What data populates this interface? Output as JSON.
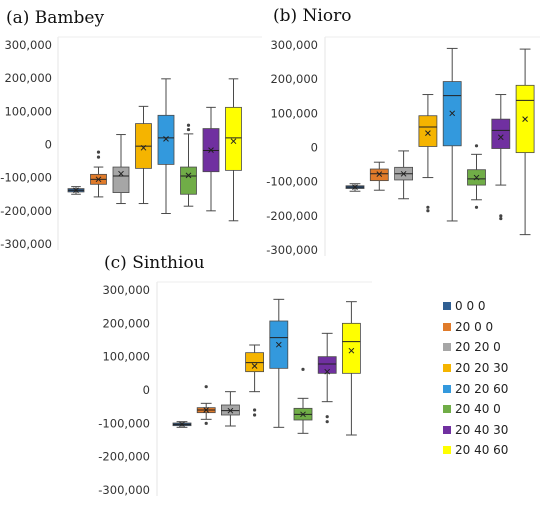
{
  "chart_data": [
    {
      "panel": "a",
      "title": "(a) Bambey",
      "type": "boxplot",
      "yticks": [
        "300,000",
        "200,000",
        "100,000",
        "0",
        "-100,000",
        "-200,000",
        "-300,000"
      ],
      "ylim": [
        -300000,
        300000
      ],
      "series": [
        {
          "name": "0 0 0",
          "min": -150000,
          "q1": -143000,
          "median": -138000,
          "q3": -133000,
          "max": -127000,
          "mean": -138000,
          "outliers": []
        },
        {
          "name": "20 0 0",
          "min": -158000,
          "q1": -120000,
          "median": -105000,
          "q3": -90000,
          "max": -68000,
          "mean": -105000,
          "outliers": [
            -38000,
            -23000
          ]
        },
        {
          "name": "20 20 0",
          "min": -178000,
          "q1": -145000,
          "median": -95000,
          "q3": -68000,
          "max": 30000,
          "mean": -88000,
          "outliers": []
        },
        {
          "name": "20 20 30",
          "min": -178000,
          "q1": -72000,
          "median": -5000,
          "q3": 63000,
          "max": 115000,
          "mean": -10000,
          "outliers": []
        },
        {
          "name": "20 20 60",
          "min": -208000,
          "q1": -60000,
          "median": 20000,
          "q3": 88000,
          "max": 198000,
          "mean": 17000,
          "outliers": []
        },
        {
          "name": "20 40 0",
          "min": -186000,
          "q1": -150000,
          "median": -95000,
          "q3": -68000,
          "max": 32000,
          "mean": -93000,
          "outliers": [
            58000,
            45000
          ]
        },
        {
          "name": "20 40 30",
          "min": -200000,
          "q1": -82000,
          "median": -18000,
          "q3": 48000,
          "max": 112000,
          "mean": -17000,
          "outliers": []
        },
        {
          "name": "20 40 60",
          "min": -230000,
          "q1": -78000,
          "median": 20000,
          "q3": 112000,
          "max": 198000,
          "mean": 10000,
          "outliers": []
        }
      ]
    },
    {
      "panel": "b",
      "title": "(b) Nioro",
      "type": "boxplot",
      "yticks": [
        "300,000",
        "200,000",
        "100,000",
        "0",
        "-100,000",
        "-200,000",
        "-300,000"
      ],
      "ylim": [
        -300000,
        300000
      ],
      "series": [
        {
          "name": "0 0 0",
          "min": -128000,
          "q1": -120000,
          "median": -116000,
          "q3": -112000,
          "max": -106000,
          "mean": -116000,
          "outliers": []
        },
        {
          "name": "20 0 0",
          "min": -125000,
          "q1": -97000,
          "median": -77000,
          "q3": -63000,
          "max": -43000,
          "mean": -78000,
          "outliers": []
        },
        {
          "name": "20 20 0",
          "min": -150000,
          "q1": -95000,
          "median": -77000,
          "q3": -58000,
          "max": -10000,
          "mean": -77000,
          "outliers": []
        },
        {
          "name": "20 20 30",
          "min": -88000,
          "q1": 3000,
          "median": 60000,
          "q3": 93000,
          "max": 155000,
          "mean": 42000,
          "outliers": [
            -175000,
            -185000
          ]
        },
        {
          "name": "20 20 60",
          "min": -215000,
          "q1": 5000,
          "median": 152000,
          "q3": 193000,
          "max": 290000,
          "mean": 100000,
          "outliers": []
        },
        {
          "name": "20 40 0",
          "min": -153000,
          "q1": -110000,
          "median": -92000,
          "q3": -65000,
          "max": -20000,
          "mean": -88000,
          "outliers": [
            -175000,
            5000
          ]
        },
        {
          "name": "20 40 30",
          "min": -110000,
          "q1": -3000,
          "median": 50000,
          "q3": 83000,
          "max": 155000,
          "mean": 30000,
          "outliers": [
            -200000,
            -208000
          ]
        },
        {
          "name": "20 40 60",
          "min": -255000,
          "q1": -15000,
          "median": 138000,
          "q3": 182000,
          "max": 288000,
          "mean": 83000,
          "outliers": []
        }
      ]
    },
    {
      "panel": "c",
      "title": "(c) Sinthiou",
      "type": "boxplot",
      "yticks": [
        "300,000",
        "200,000",
        "100,000",
        "0",
        "-100,000",
        "-200,000",
        "-300,000"
      ],
      "ylim": [
        -300000,
        300000
      ],
      "series": [
        {
          "name": "0 0 0",
          "min": -112000,
          "q1": -107000,
          "median": -103000,
          "q3": -99000,
          "max": -95000,
          "mean": -103000,
          "outliers": []
        },
        {
          "name": "20 0 0",
          "min": -88000,
          "q1": -68000,
          "median": -60000,
          "q3": -53000,
          "max": -40000,
          "mean": -60000,
          "outliers": [
            -100000,
            10000
          ]
        },
        {
          "name": "20 20 0",
          "min": -108000,
          "q1": -75000,
          "median": -62000,
          "q3": -45000,
          "max": -5000,
          "mean": -62000,
          "outliers": []
        },
        {
          "name": "20 20 30",
          "min": -5000,
          "q1": 55000,
          "median": 82000,
          "q3": 112000,
          "max": 135000,
          "mean": 72000,
          "outliers": [
            -60000,
            -75000
          ]
        },
        {
          "name": "20 20 60",
          "min": -112000,
          "q1": 65000,
          "median": 157000,
          "q3": 207000,
          "max": 272000,
          "mean": 136000,
          "outliers": []
        },
        {
          "name": "20 40 0",
          "min": -130000,
          "q1": -90000,
          "median": -73000,
          "q3": -55000,
          "max": -25000,
          "mean": -73000,
          "outliers": [
            62000
          ]
        },
        {
          "name": "20 40 30",
          "min": -35000,
          "q1": 50000,
          "median": 78000,
          "q3": 100000,
          "max": 170000,
          "mean": 55000,
          "outliers": [
            -80000,
            -95000
          ]
        },
        {
          "name": "20 40 60",
          "min": -135000,
          "q1": 50000,
          "median": 145000,
          "q3": 200000,
          "max": 265000,
          "mean": 118000,
          "outliers": []
        }
      ]
    }
  ],
  "legend": [
    {
      "label": "0 0 0",
      "color": "#2f5f93"
    },
    {
      "label": "20 0 0",
      "color": "#e07b2a"
    },
    {
      "label": "20 20 0",
      "color": "#a6a6a6"
    },
    {
      "label": "20 20 30",
      "color": "#f5b400"
    },
    {
      "label": "20 20 60",
      "color": "#3399dd"
    },
    {
      "label": "20 40 0",
      "color": "#70ad47"
    },
    {
      "label": "20 40 30",
      "color": "#7030a0"
    },
    {
      "label": "20 40 60",
      "color": "#ffff00"
    }
  ]
}
